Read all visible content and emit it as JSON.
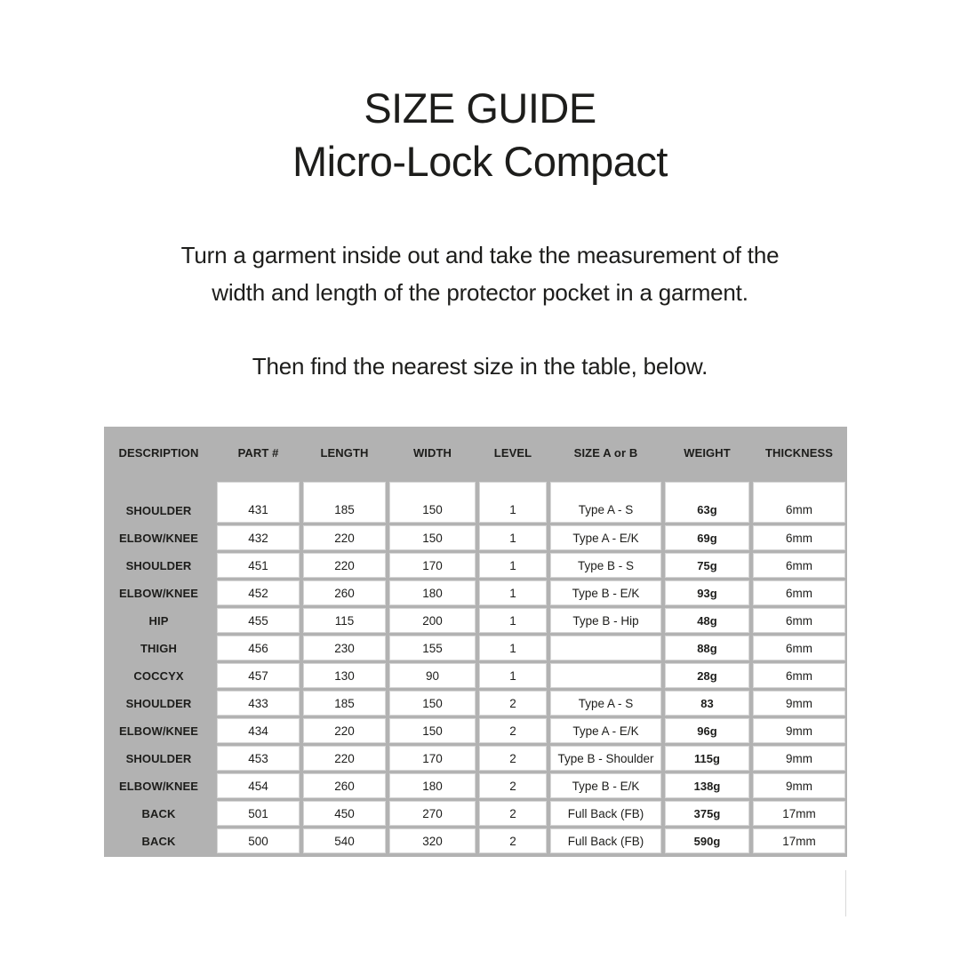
{
  "colors": {
    "table_bg": "#b2b2b2",
    "cell_bg": "#ffffff",
    "cell_border": "#d6d6d6",
    "text": "#1d1d1b",
    "artifact_line": "#d9d9d9"
  },
  "title": {
    "line1": "SIZE GUIDE",
    "line2": "Micro-Lock Compact"
  },
  "instructions": {
    "paragraph1_line1": "Turn a garment inside out and take the measurement of the",
    "paragraph1_line2": "width and length of the protector pocket in a garment.",
    "paragraph2": "Then find the nearest size in the table, below."
  },
  "size_table": {
    "headers": [
      "DESCRIPTION",
      "PART #",
      "LENGTH",
      "WIDTH",
      "LEVEL",
      "SIZE A or B",
      "WEIGHT",
      "THICKNESS"
    ],
    "rows": [
      [
        "SHOULDER",
        "431",
        "185",
        "150",
        "1",
        "Type A - S",
        "63g",
        "6mm"
      ],
      [
        "ELBOW/KNEE",
        "432",
        "220",
        "150",
        "1",
        "Type A - E/K",
        "69g",
        "6mm"
      ],
      [
        "SHOULDER",
        "451",
        "220",
        "170",
        "1",
        "Type B - S",
        "75g",
        "6mm"
      ],
      [
        "ELBOW/KNEE",
        "452",
        "260",
        "180",
        "1",
        "Type B - E/K",
        "93g",
        "6mm"
      ],
      [
        "HIP",
        "455",
        "115",
        "200",
        "1",
        "Type B - Hip",
        "48g",
        "6mm"
      ],
      [
        "THIGH",
        "456",
        "230",
        "155",
        "1",
        "",
        "88g",
        "6mm"
      ],
      [
        "COCCYX",
        "457",
        "130",
        "90",
        "1",
        "",
        "28g",
        "6mm"
      ],
      [
        "SHOULDER",
        "433",
        "185",
        "150",
        "2",
        "Type A - S",
        "83",
        "9mm"
      ],
      [
        "ELBOW/KNEE",
        "434",
        "220",
        "150",
        "2",
        "Type A - E/K",
        "96g",
        "9mm"
      ],
      [
        "SHOULDER",
        "453",
        "220",
        "170",
        "2",
        "Type B - Shoulder",
        "115g",
        "9mm"
      ],
      [
        "ELBOW/KNEE",
        "454",
        "260",
        "180",
        "2",
        "Type B - E/K",
        "138g",
        "9mm"
      ],
      [
        "BACK",
        "501",
        "450",
        "270",
        "2",
        "Full Back (FB)",
        "375g",
        "17mm"
      ],
      [
        "BACK",
        "500",
        "540",
        "320",
        "2",
        "Full Back (FB)",
        "590g",
        "17mm"
      ]
    ]
  }
}
